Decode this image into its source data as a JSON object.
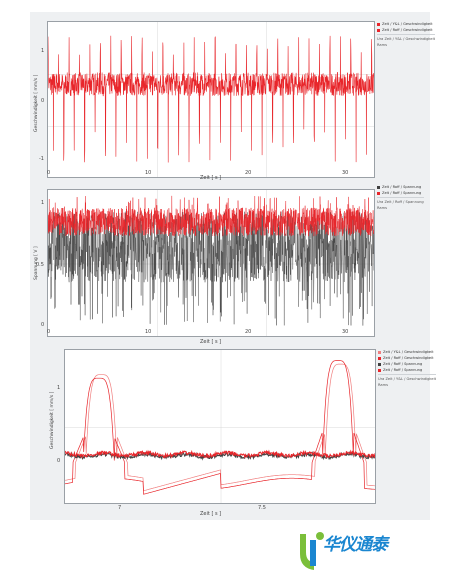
{
  "colors": {
    "red": "#e8262b",
    "dark": "#404040",
    "pink": "#f08080",
    "grid": "#d8d8d8"
  },
  "logo": {
    "text": "华仪通泰"
  },
  "chart_data": [
    {
      "type": "line",
      "xlabel": "Zeit [ s ]",
      "ylabel": "Geschwindigkeit [ mm/s ]",
      "xticks": [
        "0",
        "10",
        "20",
        "30"
      ],
      "xlim": [
        0,
        33
      ],
      "yticks": [
        "1",
        "0",
        "-1"
      ],
      "ylim": [
        -1.1,
        1.3
      ],
      "legend": [
        "Zeit / Y&L / Geschwindigkeit",
        "Zeit / Roff / Geschwindigkeit",
        "Ura Zeit / Y&L / Geschwindigkeit",
        "Rams"
      ],
      "series": [
        {
          "color": "red",
          "baseline": 0.35,
          "spike": 1.05,
          "dip": -0.85,
          "noise": 0.18,
          "period": 1.05
        }
      ]
    },
    {
      "type": "line",
      "xlabel": "Zeit [ s ]",
      "ylabel": "Spannung [ V ]",
      "xticks": [
        "0",
        "10",
        "20",
        "30"
      ],
      "xlim": [
        0,
        33
      ],
      "yticks": [
        "1",
        "0.5",
        "0"
      ],
      "ylim": [
        -0.05,
        1.2
      ],
      "legend": [
        "Zeit / Roff / Spannung",
        "Zeit / Roff / Spannung",
        "Ura Zeit / Roff / Spannung",
        "Rams"
      ],
      "series": [
        {
          "color": "dark",
          "baseline": 0.72,
          "noise": 0.3
        },
        {
          "color": "red",
          "baseline": 0.93,
          "noise": 0.12
        }
      ]
    },
    {
      "type": "line",
      "xlabel": "Zeit [ s ]",
      "ylabel": "Geschwindigkeit [ mm/s ]",
      "xticks": [
        "7",
        "7.5"
      ],
      "xlim": [
        6.8,
        8.0
      ],
      "yticks": [
        "1",
        "0"
      ],
      "ylim": [
        -0.6,
        1.6
      ],
      "legend": [
        "Zeit / Y&L / Geschwindigkeit",
        "Zeit / Roff / Geschwindigkeit",
        "Zeit / Roff / Spannung",
        "Zeit / Roff / Spannung",
        "Ura Zeit / Y&L / Geschwindigkeit",
        "Rams"
      ],
      "series": [
        {
          "color": "pink",
          "peaks": [
            [
              6.94,
              1.25
            ],
            [
              7.86,
              1.4
            ]
          ]
        },
        {
          "color": "red",
          "peaks": [
            [
              6.93,
              1.2
            ],
            [
              7.85,
              1.45
            ]
          ]
        },
        {
          "color": "dark",
          "baseline": 0.1
        },
        {
          "color": "red",
          "baseline": 0.12
        }
      ]
    }
  ]
}
